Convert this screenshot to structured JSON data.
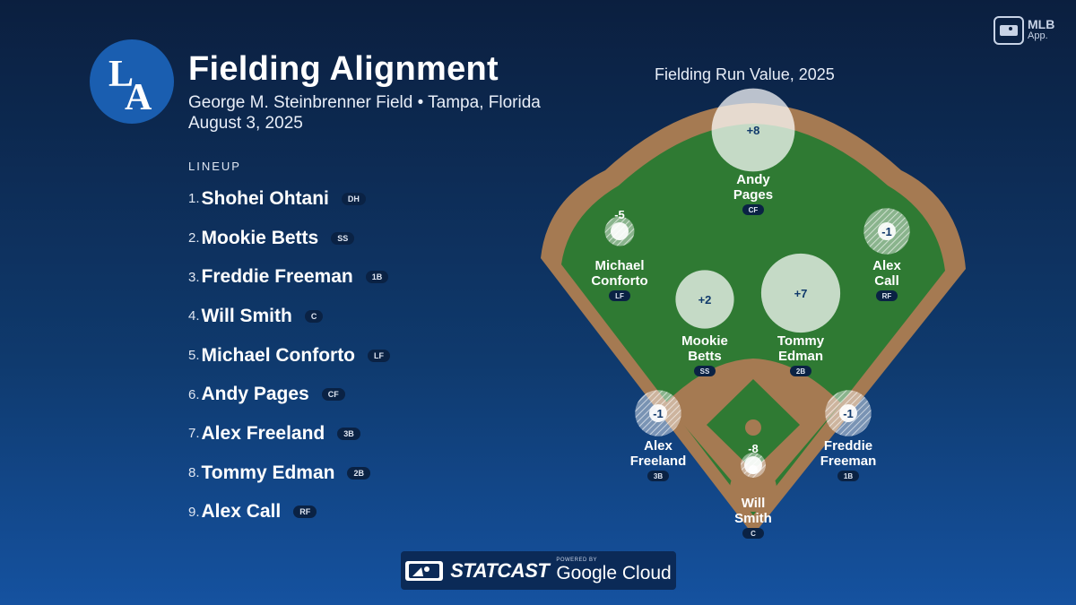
{
  "header": {
    "title": "Fielding Alignment",
    "venue": "George M. Steinbrenner Field • Tampa, Florida",
    "date": "August 3, 2025",
    "team_logo": "LA"
  },
  "lineup": {
    "heading": "LINEUP",
    "players": [
      {
        "num": "1.",
        "name": "Shohei Ohtani",
        "pos": "DH"
      },
      {
        "num": "2.",
        "name": "Mookie Betts",
        "pos": "SS"
      },
      {
        "num": "3.",
        "name": "Freddie Freeman",
        "pos": "1B"
      },
      {
        "num": "4.",
        "name": "Will Smith",
        "pos": "C"
      },
      {
        "num": "5.",
        "name": "Michael Conforto",
        "pos": "LF"
      },
      {
        "num": "6.",
        "name": "Andy Pages",
        "pos": "CF"
      },
      {
        "num": "7.",
        "name": "Alex Freeland",
        "pos": "3B"
      },
      {
        "num": "8.",
        "name": "Tommy Edman",
        "pos": "2B"
      },
      {
        "num": "9.",
        "name": "Alex Call",
        "pos": "RF"
      }
    ]
  },
  "field": {
    "title": "Fielding Run Value, 2025",
    "fielders": [
      {
        "key": "cf",
        "value": "+8",
        "rv": 8,
        "name1": "Andy",
        "name2": "Pages",
        "pos": "CF"
      },
      {
        "key": "lf",
        "value": "-5",
        "rv": -5,
        "name1": "Michael",
        "name2": "Conforto",
        "pos": "LF"
      },
      {
        "key": "rf",
        "value": "-1",
        "rv": -1,
        "name1": "Alex",
        "name2": "Call",
        "pos": "RF"
      },
      {
        "key": "ss",
        "value": "+2",
        "rv": 2,
        "name1": "Mookie",
        "name2": "Betts",
        "pos": "SS"
      },
      {
        "key": "2b",
        "value": "+7",
        "rv": 7,
        "name1": "Tommy",
        "name2": "Edman",
        "pos": "2B"
      },
      {
        "key": "3b",
        "value": "-1",
        "rv": -1,
        "name1": "Alex",
        "name2": "Freeland",
        "pos": "3B"
      },
      {
        "key": "1b",
        "value": "-1",
        "rv": -1,
        "name1": "Freddie",
        "name2": "Freeman",
        "pos": "1B"
      },
      {
        "key": "c",
        "value": "-8",
        "rv": -8,
        "name1": "Will",
        "name2": "Smith",
        "pos": "C"
      }
    ]
  },
  "branding": {
    "app_label_1": "MLB",
    "app_label_2": "App.",
    "statcast": "STATCAST",
    "powered_by": "POWERED BY",
    "cloud": "Google Cloud"
  },
  "colors": {
    "background_top": "#0b1f3f",
    "background_bottom": "#1552a0",
    "grass": "#2f7a33",
    "dirt": "#a57a52",
    "logo_blue": "#1a5eb0"
  }
}
